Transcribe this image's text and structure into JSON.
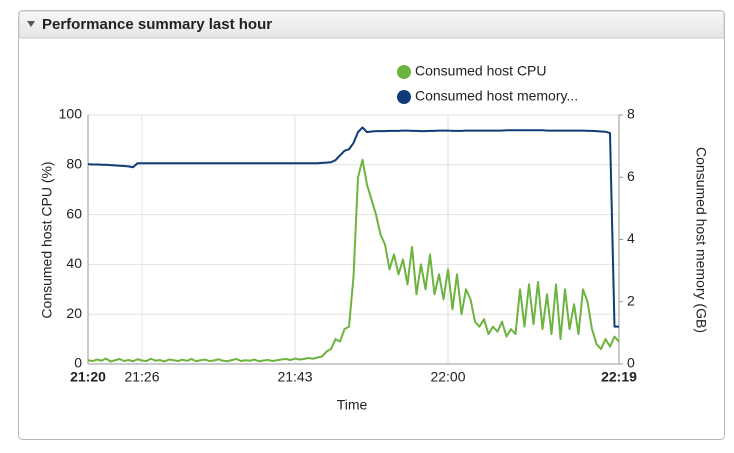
{
  "panel": {
    "title": "Performance summary last hour"
  },
  "chart_data": {
    "type": "line",
    "xlabel": "Time",
    "ylabel": "Consumed host CPU (%)",
    "y2label": "Consumed host memory (GB)",
    "x": [
      1280,
      1280.5,
      1281,
      1281.5,
      1282,
      1282.5,
      1283,
      1283.5,
      1284,
      1284.5,
      1285,
      1285.5,
      1286,
      1286.5,
      1287,
      1287.5,
      1288,
      1288.5,
      1289,
      1289.5,
      1290,
      1290.5,
      1291,
      1291.5,
      1292,
      1292.5,
      1293,
      1293.5,
      1294,
      1294.5,
      1295,
      1295.5,
      1296,
      1296.5,
      1297,
      1297.5,
      1298,
      1298.5,
      1299,
      1299.5,
      1300,
      1300.5,
      1301,
      1301.5,
      1302,
      1302.5,
      1303,
      1303.5,
      1304,
      1304.5,
      1305,
      1305.5,
      1306,
      1306.5,
      1307,
      1307.5,
      1308,
      1308.5,
      1309,
      1309.5,
      1310,
      1310.5,
      1311,
      1311.5,
      1312,
      1312.5,
      1313,
      1313.5,
      1314,
      1314.5,
      1315,
      1315.5,
      1316,
      1316.5,
      1317,
      1317.5,
      1318,
      1318.5,
      1319,
      1319.5,
      1320,
      1320.5,
      1321,
      1321.5,
      1322,
      1322.5,
      1323,
      1323.5,
      1324,
      1324.5,
      1325,
      1325.5,
      1326,
      1326.5,
      1327,
      1327.5,
      1328,
      1328.5,
      1329,
      1329.5,
      1330,
      1330.5,
      1331,
      1331.5,
      1332,
      1332.5,
      1333,
      1333.5,
      1334,
      1334.5,
      1335,
      1335.5,
      1336,
      1336.5,
      1337,
      1337.5,
      1338,
      1338.5,
      1339
    ],
    "series": [
      {
        "name": "Consumed host CPU",
        "color": "#6db33f",
        "axis": "y",
        "values": [
          1.5,
          1.2,
          1.8,
          1.3,
          2.2,
          1.0,
          1.5,
          2.0,
          1.2,
          1.6,
          1.1,
          1.9,
          1.4,
          1.2,
          2.1,
          1.3,
          1.6,
          1.0,
          1.8,
          1.5,
          1.2,
          1.7,
          1.3,
          2.0,
          1.1,
          1.5,
          1.8,
          1.2,
          1.4,
          1.9,
          1.3,
          1.1,
          1.6,
          2.0,
          1.2,
          1.5,
          1.3,
          1.8,
          1.1,
          1.4,
          1.6,
          1.2,
          1.5,
          1.8,
          2.0,
          1.6,
          2.2,
          1.8,
          2.0,
          2.4,
          2.1,
          2.6,
          3,
          5,
          6,
          10,
          9,
          14,
          15,
          35,
          75,
          82,
          72,
          66,
          60,
          52,
          48,
          38,
          44,
          36,
          42,
          32,
          47,
          28,
          40,
          30,
          44,
          28,
          36,
          26,
          38,
          22,
          36,
          20,
          30,
          26,
          17,
          15,
          18,
          12,
          15,
          13,
          17,
          11,
          14,
          12,
          30,
          15,
          32,
          16,
          33,
          14,
          28,
          12,
          32,
          10,
          30,
          14,
          24,
          12,
          30,
          25,
          14,
          8,
          6,
          10,
          7,
          11,
          9
        ]
      },
      {
        "name": "Consumed host memory...",
        "color": "#0f3c78",
        "axis": "y2",
        "values": [
          6.42,
          6.41,
          6.41,
          6.4,
          6.4,
          6.39,
          6.38,
          6.37,
          6.36,
          6.35,
          6.32,
          6.45,
          6.45,
          6.45,
          6.45,
          6.45,
          6.45,
          6.45,
          6.45,
          6.45,
          6.45,
          6.45,
          6.45,
          6.45,
          6.45,
          6.45,
          6.45,
          6.45,
          6.45,
          6.45,
          6.45,
          6.45,
          6.45,
          6.45,
          6.45,
          6.45,
          6.45,
          6.45,
          6.45,
          6.45,
          6.45,
          6.45,
          6.45,
          6.45,
          6.45,
          6.45,
          6.45,
          6.45,
          6.45,
          6.45,
          6.45,
          6.45,
          6.46,
          6.47,
          6.48,
          6.55,
          6.7,
          6.85,
          6.9,
          7.1,
          7.45,
          7.6,
          7.45,
          7.47,
          7.48,
          7.48,
          7.48,
          7.49,
          7.49,
          7.49,
          7.5,
          7.5,
          7.49,
          7.49,
          7.48,
          7.48,
          7.49,
          7.49,
          7.5,
          7.5,
          7.5,
          7.49,
          7.49,
          7.49,
          7.5,
          7.5,
          7.5,
          7.5,
          7.5,
          7.5,
          7.5,
          7.5,
          7.5,
          7.51,
          7.51,
          7.51,
          7.51,
          7.51,
          7.51,
          7.51,
          7.51,
          7.51,
          7.5,
          7.5,
          7.5,
          7.5,
          7.5,
          7.5,
          7.5,
          7.5,
          7.5,
          7.49,
          7.49,
          7.48,
          7.47,
          7.46,
          7.42,
          1.2,
          1.2
        ]
      }
    ],
    "xlim": [
      1280,
      1339
    ],
    "xticks": [
      {
        "value": 1280,
        "label": "21:20"
      },
      {
        "value": 1286,
        "label": "21:26"
      },
      {
        "value": 1303,
        "label": "21:43"
      },
      {
        "value": 1320,
        "label": "22:00"
      },
      {
        "value": 1339,
        "label": "22:19"
      }
    ],
    "ylim": [
      0,
      100
    ],
    "yticks": [
      0,
      20,
      40,
      60,
      80,
      100
    ],
    "y2lim": [
      0,
      8
    ],
    "y2ticks": [
      0,
      2,
      4,
      6,
      8
    ],
    "grid": true
  }
}
